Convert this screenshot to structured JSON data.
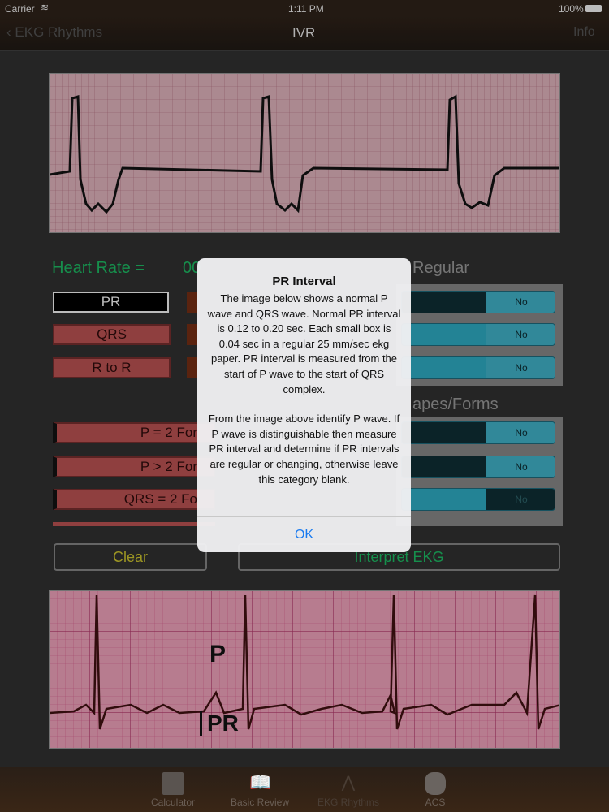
{
  "status": {
    "carrier": "Carrier",
    "time": "1:11 PM",
    "battery": "100%"
  },
  "nav": {
    "back": "EKG Rhythms",
    "title": "IVR",
    "right": "Info"
  },
  "heart_rate": {
    "label": "Heart Rate =",
    "value": "00"
  },
  "measure_buttons": [
    "PR",
    "QRS",
    "R to R"
  ],
  "regular": {
    "header": "Regular",
    "toggles": [
      "No",
      "No",
      "No"
    ]
  },
  "shapes": {
    "header": "apes/Forms",
    "toggles": [
      "No",
      "No",
      "No"
    ]
  },
  "form_buttons": [
    "P = 2 For",
    "P > 2 For",
    "QRS = 2 Fo"
  ],
  "actions": {
    "clear": "Clear",
    "interpret": "Interpret EKG"
  },
  "strip_labels": {
    "p": "P",
    "pr": "PR"
  },
  "dialog": {
    "title": "PR Interval",
    "body1": "The image below shows a normal P wave and QRS wave.  Normal PR interval is 0.12 to 0.20 sec.  Each small box is 0.04 sec in a regular 25 mm/sec ekg paper. PR interval is measured from the start of P wave to the start of QRS complex.",
    "body2": "From the image above identify P wave.  If P wave is distinguishable then measure PR interval and determine if PR intervals are regular or changing, otherwise leave this category blank.",
    "ok": "OK"
  },
  "tabs": [
    {
      "label": "Calculator",
      "icon": "calculator-icon"
    },
    {
      "label": "Basic Review",
      "icon": "book-icon"
    },
    {
      "label": "EKG Rhythms",
      "icon": "ekg-icon"
    },
    {
      "label": "ACS",
      "icon": "heart-icon"
    }
  ],
  "colors": {
    "green": "#1aa85a",
    "yellow": "#b8b02a",
    "accent": "#1a7bf0"
  }
}
